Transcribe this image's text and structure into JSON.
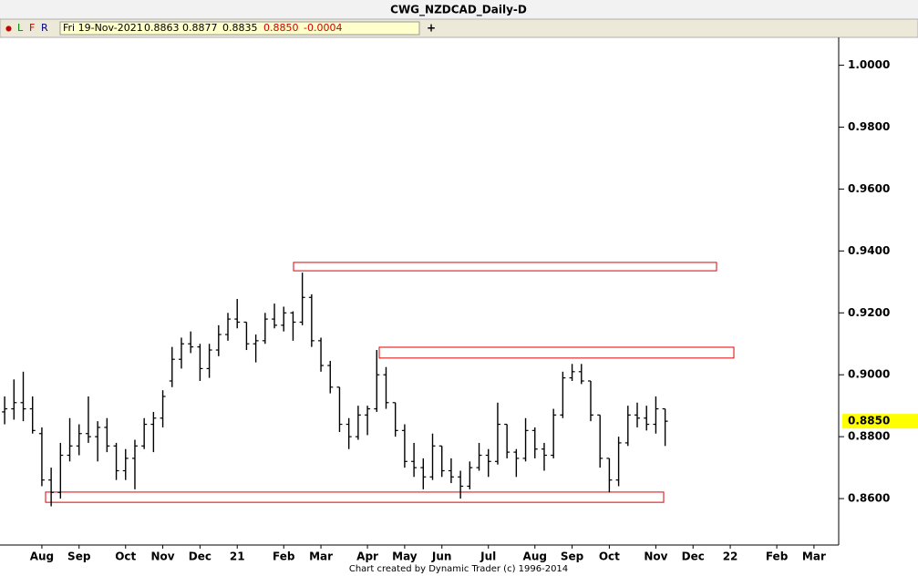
{
  "chart_data": {
    "type": "ohlc",
    "title": "CWG_NZDCAD_Daily-D",
    "toolbar": [
      "●",
      "L",
      "F",
      "R",
      "+"
    ],
    "info": [
      "Fri 19-Nov-2021",
      "0.8863",
      "0.8877",
      "0.8835",
      "0.8850",
      "-0.0004"
    ],
    "footer": "Chart created by Dynamic Trader  (c) 1996-2014",
    "categories": [
      null,
      null,
      null,
      null,
      "Aug",
      null,
      null,
      null,
      "Sep",
      null,
      null,
      null,
      null,
      "Oct",
      null,
      null,
      null,
      "Nov",
      null,
      null,
      null,
      "Dec",
      null,
      null,
      null,
      "21",
      null,
      null,
      null,
      null,
      "Feb",
      null,
      null,
      null,
      "Mar",
      null,
      null,
      null,
      null,
      "Apr",
      null,
      null,
      null,
      "May",
      null,
      null,
      null,
      "Jun",
      null,
      null,
      null,
      null,
      "Jul",
      null,
      null,
      null,
      null,
      "Aug",
      null,
      null,
      null,
      "Sep",
      null,
      null,
      null,
      "Oct",
      null,
      null,
      null,
      null,
      "Nov",
      null,
      null,
      null,
      "Dec",
      null,
      null,
      null,
      "22",
      null,
      null,
      null,
      null,
      "Feb",
      null,
      null,
      null,
      "Mar"
    ],
    "open": [
      0.888,
      0.889,
      0.891,
      0.889,
      0.881,
      0.866,
      0.862,
      0.874,
      0.877,
      0.881,
      0.88,
      0.883,
      0.877,
      0.869,
      0.873,
      0.877,
      0.884,
      0.886,
      0.898,
      0.905,
      0.91,
      0.909,
      0.902,
      0.908,
      0.913,
      0.918,
      0.917,
      0.91,
      0.911,
      0.918,
      0.916,
      0.92,
      0.917,
      0.925,
      0.911,
      0.903,
      0.896,
      0.884,
      0.88,
      0.887,
      0.889,
      0.9,
      0.891,
      0.882,
      0.872,
      0.87,
      0.867,
      0.877,
      0.869,
      0.867,
      0.864,
      0.87,
      0.874,
      0.872,
      0.884,
      0.875,
      0.873,
      0.882,
      0.876,
      0.874,
      0.887,
      0.899,
      0.901,
      0.898,
      0.887,
      0.873,
      0.866,
      0.878,
      0.887,
      0.886,
      0.884,
      0.889,
      null,
      null,
      null,
      null,
      null,
      null,
      null,
      null,
      null,
      null,
      null,
      null,
      null,
      null,
      null,
      null
    ],
    "high": [
      0.893,
      0.8985,
      0.901,
      0.893,
      0.883,
      0.87,
      0.878,
      0.886,
      0.884,
      0.893,
      0.885,
      0.886,
      0.878,
      0.876,
      0.879,
      0.886,
      0.888,
      0.895,
      0.909,
      0.912,
      0.914,
      0.91,
      0.91,
      0.916,
      0.92,
      0.9245,
      0.917,
      0.913,
      0.92,
      0.923,
      0.922,
      0.9205,
      0.933,
      0.926,
      0.912,
      0.9045,
      0.896,
      0.886,
      0.89,
      0.89,
      0.908,
      0.9025,
      0.891,
      0.884,
      0.878,
      0.873,
      0.881,
      0.877,
      0.873,
      0.869,
      0.872,
      0.878,
      0.876,
      0.891,
      0.884,
      0.876,
      0.886,
      0.883,
      0.878,
      0.889,
      0.901,
      0.9035,
      0.9035,
      0.898,
      0.887,
      0.873,
      0.88,
      0.89,
      0.891,
      0.89,
      0.893,
      0.889,
      null,
      null,
      null,
      null,
      null,
      null,
      null,
      null,
      null,
      null,
      null,
      null,
      null,
      null,
      null,
      null
    ],
    "low": [
      0.884,
      0.8855,
      0.885,
      0.881,
      0.864,
      0.8575,
      0.86,
      0.872,
      0.874,
      0.878,
      0.872,
      0.875,
      0.866,
      0.866,
      0.863,
      0.876,
      0.875,
      0.883,
      0.896,
      0.902,
      0.907,
      0.898,
      0.899,
      0.906,
      0.911,
      0.915,
      0.908,
      0.904,
      0.91,
      0.915,
      0.914,
      0.911,
      0.916,
      0.909,
      0.901,
      0.894,
      0.8815,
      0.876,
      0.879,
      0.8805,
      0.888,
      0.889,
      0.88,
      0.87,
      0.867,
      0.863,
      0.866,
      0.867,
      0.865,
      0.86,
      0.863,
      0.869,
      0.867,
      0.871,
      0.873,
      0.867,
      0.872,
      0.873,
      0.869,
      0.873,
      0.886,
      0.898,
      0.897,
      0.885,
      0.87,
      0.862,
      0.864,
      0.877,
      0.883,
      0.882,
      0.881,
      0.877,
      null,
      null,
      null,
      null,
      null,
      null,
      null,
      null,
      null,
      null,
      null,
      null,
      null,
      null,
      null,
      null
    ],
    "close": [
      0.889,
      0.891,
      0.889,
      0.882,
      0.866,
      0.862,
      0.874,
      0.877,
      0.881,
      0.88,
      0.883,
      0.877,
      0.869,
      0.873,
      0.877,
      0.884,
      0.886,
      0.893,
      0.905,
      0.91,
      0.909,
      0.902,
      0.908,
      0.913,
      0.918,
      0.917,
      0.91,
      0.911,
      0.918,
      0.916,
      0.92,
      0.917,
      0.925,
      0.911,
      0.903,
      0.896,
      0.884,
      0.88,
      0.887,
      0.889,
      0.9,
      0.891,
      0.882,
      0.872,
      0.87,
      0.867,
      0.877,
      0.869,
      0.867,
      0.864,
      0.87,
      0.874,
      0.872,
      0.884,
      0.875,
      0.873,
      0.882,
      0.876,
      0.874,
      0.887,
      0.899,
      0.901,
      0.898,
      0.887,
      0.873,
      0.866,
      0.878,
      0.887,
      0.886,
      0.884,
      0.889,
      0.885,
      null,
      null,
      null,
      null,
      null,
      null,
      null,
      null,
      null,
      null,
      null,
      null,
      null,
      null,
      null,
      null
    ],
    "color": "#000000",
    "zones": [
      {
        "from": 0.9336,
        "to": 0.9363,
        "color": "#e00000"
      },
      {
        "from": 0.9054,
        "to": 0.9089,
        "color": "#e00000"
      },
      {
        "from": 0.8588,
        "to": 0.8621,
        "color": "#e00000"
      }
    ],
    "last_price": {
      "value": 0.885,
      "label": "0.8850"
    },
    "ylim": [
      0.845,
      1.004
    ],
    "yticks": [
      {
        "value": 0.86,
        "label": "0.8600"
      },
      {
        "value": 0.88,
        "label": "0.8800"
      },
      {
        "value": 0.9,
        "label": "0.9000"
      },
      {
        "value": 0.92,
        "label": "0.9200"
      },
      {
        "value": 0.94,
        "label": "0.9400"
      },
      {
        "value": 0.96,
        "label": "0.9600"
      },
      {
        "value": 0.98,
        "label": "0.9800"
      },
      {
        "value": 1.0,
        "label": "1.0000"
      }
    ]
  }
}
